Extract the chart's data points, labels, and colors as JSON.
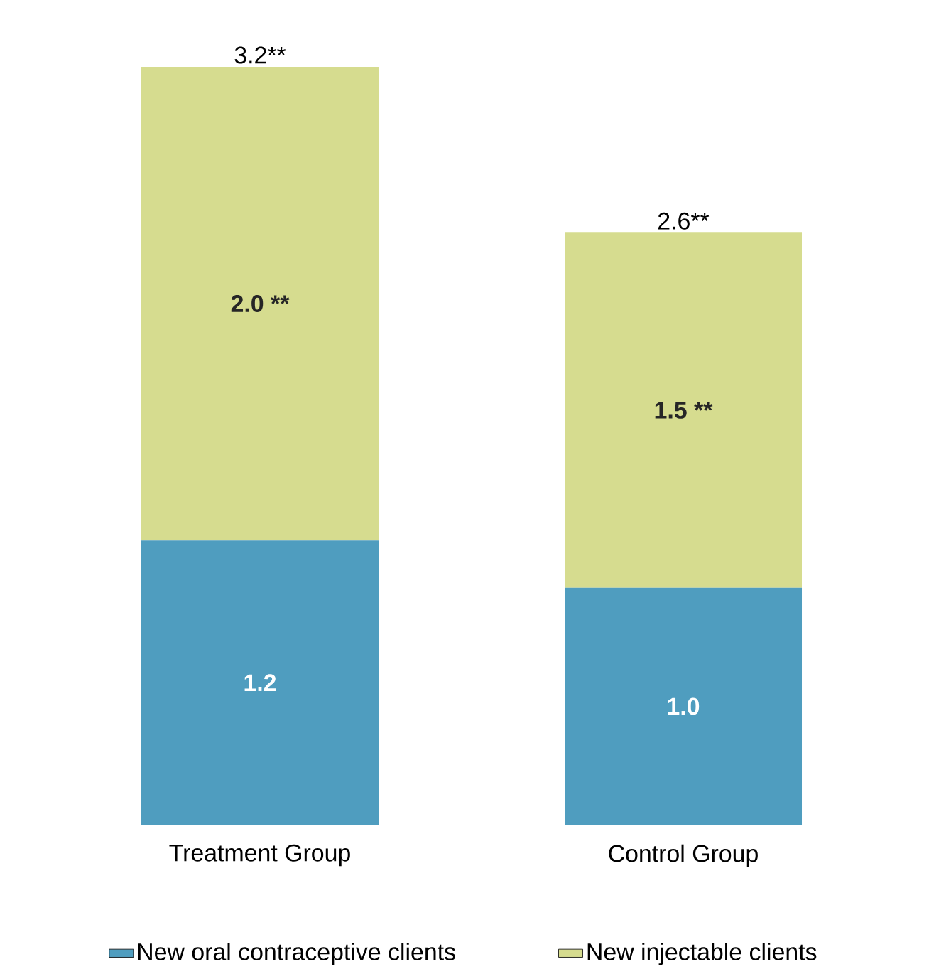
{
  "chart_data": {
    "type": "bar",
    "stacked": true,
    "categories": [
      "Treatment Group",
      "Control Group"
    ],
    "series": [
      {
        "name": "New oral contraceptive clients",
        "color": "#4f9dbf",
        "values": [
          1.2,
          1.0
        ],
        "value_labels": [
          "1.2",
          "1.0"
        ]
      },
      {
        "name": "New injectable clients",
        "color": "#d6dc8f",
        "values": [
          2.0,
          1.5
        ],
        "value_labels": [
          "2.0 **",
          "1.5 **"
        ]
      }
    ],
    "totals": [
      "3.2**",
      "2.6**"
    ],
    "legend": "bottom"
  }
}
